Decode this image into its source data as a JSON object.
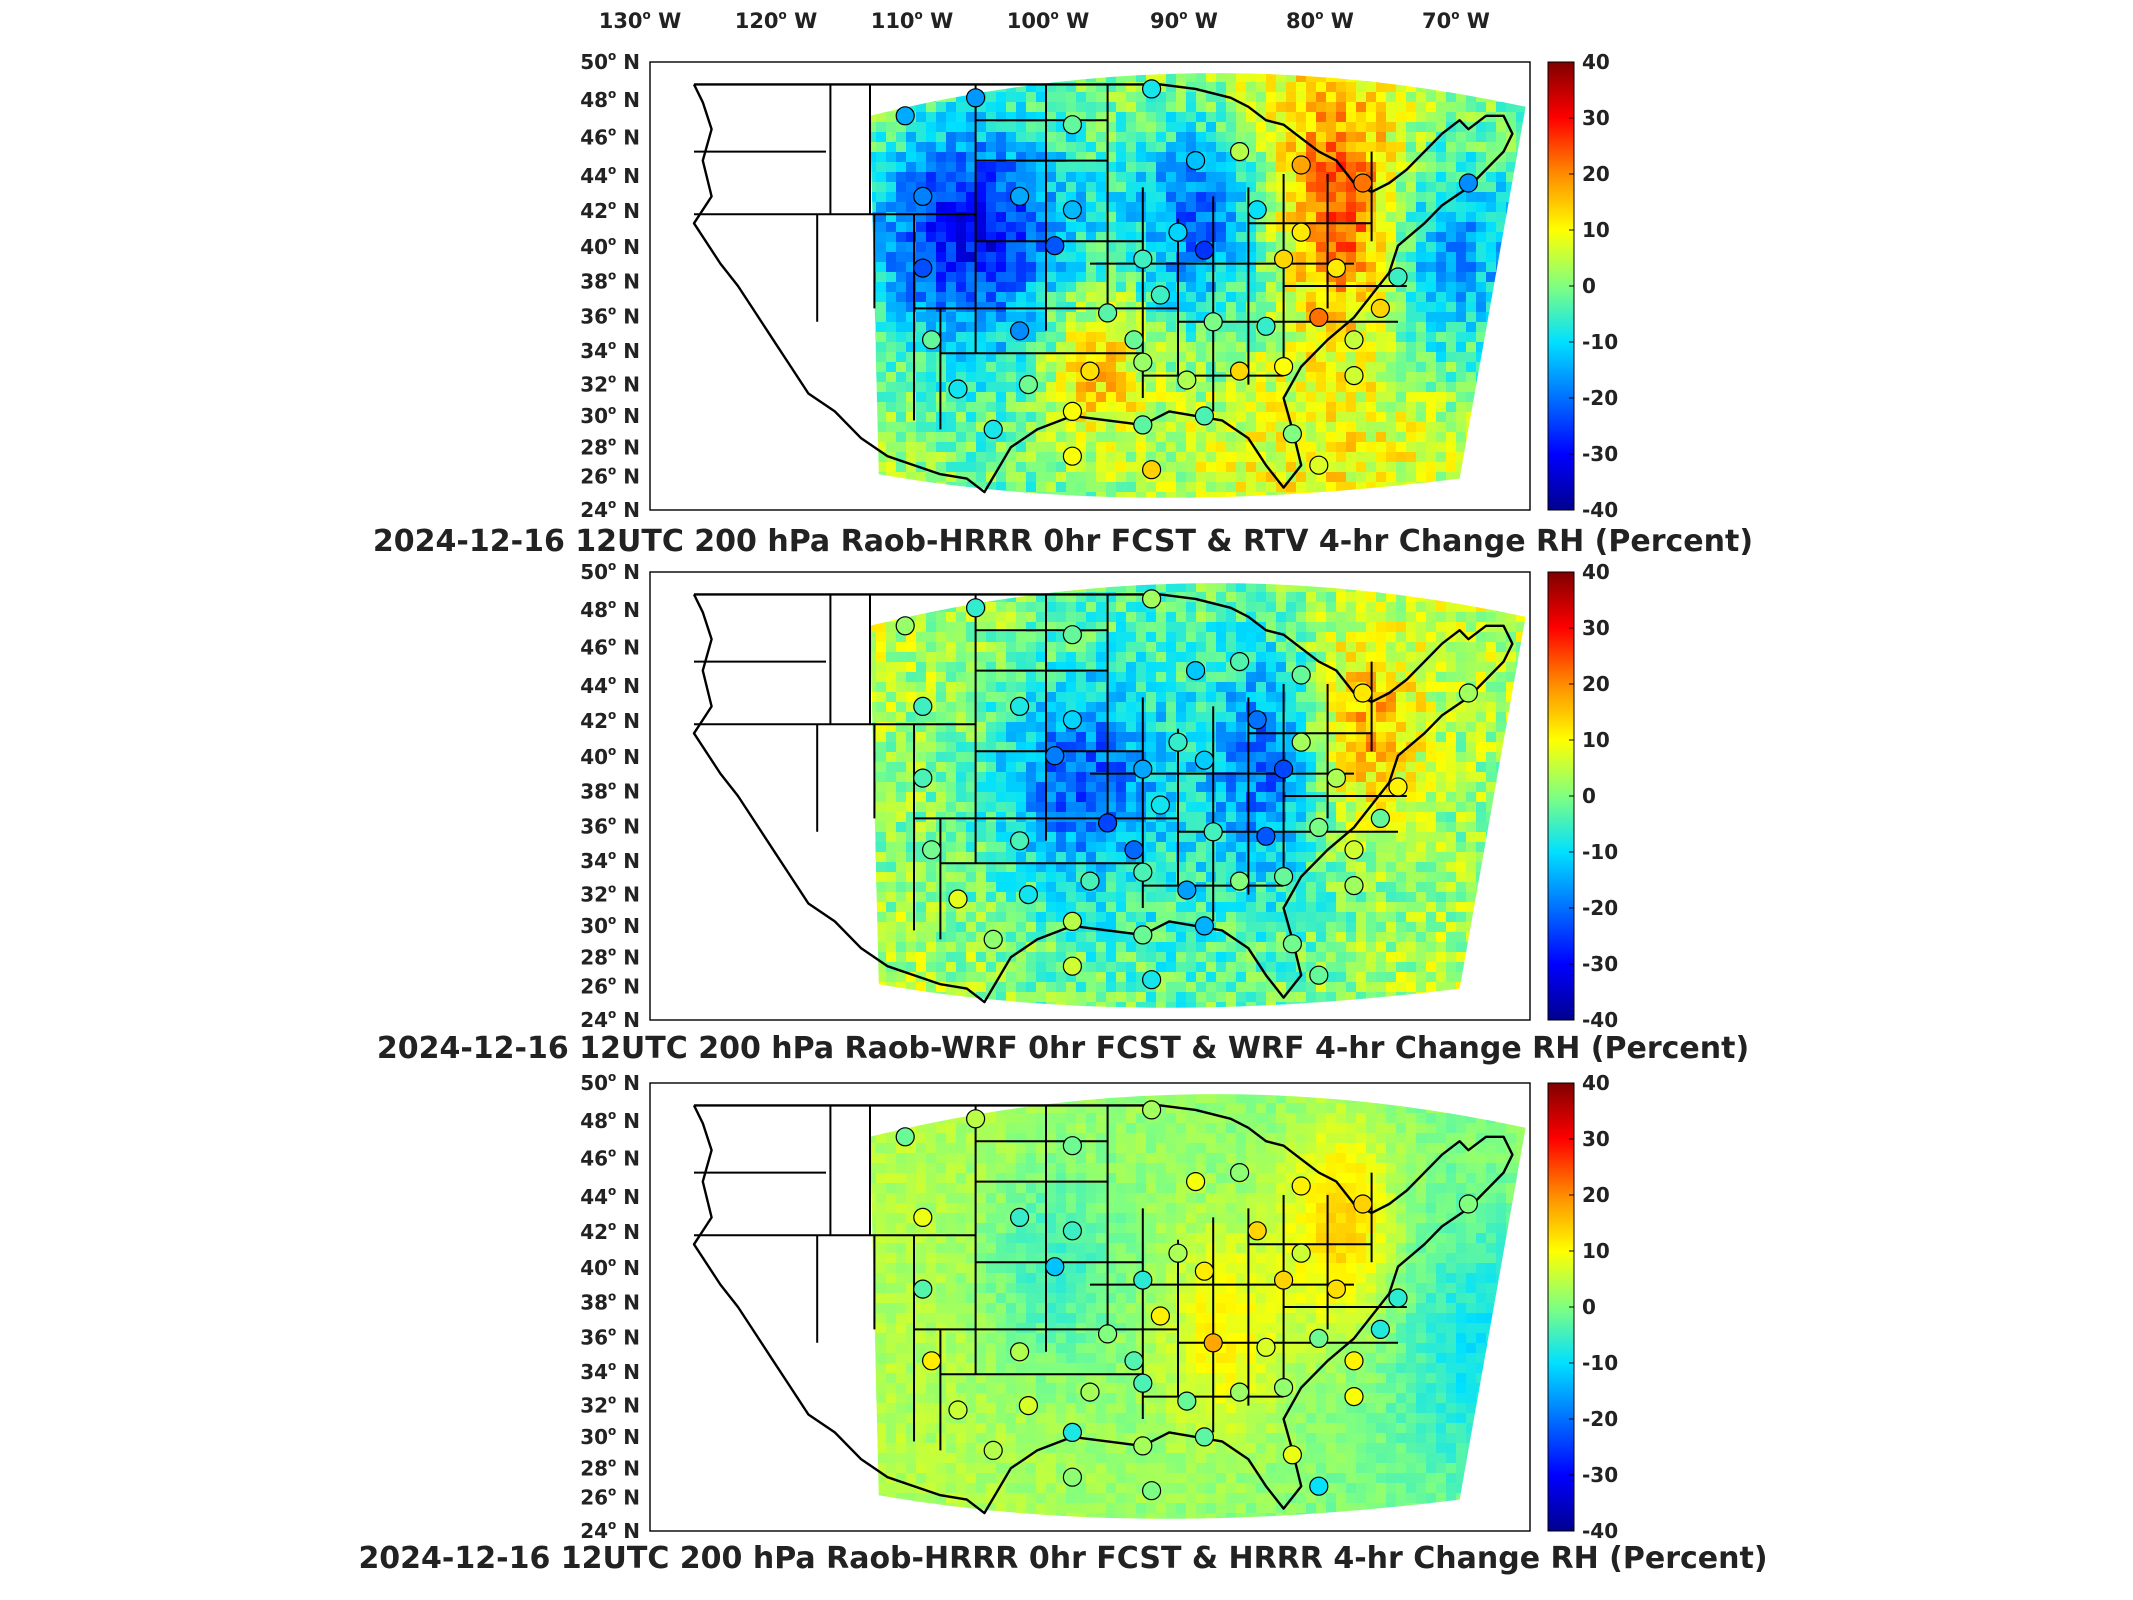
{
  "figure": {
    "longitude_labels": [
      "130",
      "120",
      "110",
      "100",
      "90",
      "80",
      "70"
    ],
    "longitude_suffix": "W",
    "latitude_labels": [
      "50",
      "48",
      "46",
      "44",
      "42",
      "40",
      "38",
      "36",
      "34",
      "32",
      "30",
      "28",
      "26",
      "24"
    ],
    "latitude_suffix": "N",
    "degree_mark": "o",
    "colorbar": {
      "ticks": [
        "40",
        "30",
        "20",
        "10",
        "0",
        "-10",
        "-20",
        "-30",
        "-40"
      ],
      "min": -40,
      "max": 40,
      "colormap": "jet",
      "colors": [
        "#00008f",
        "#0000ff",
        "#0080ff",
        "#00ffff",
        "#80ff80",
        "#ffff00",
        "#ff8000",
        "#ff0000",
        "#800000"
      ]
    },
    "panels": [
      {
        "id": "panel-1",
        "title": "2024-12-16 12UTC 200 hPa Raob-HRRR 0hr FCST & RTV 4-hr Change RH (Percent)"
      },
      {
        "id": "panel-2",
        "title": "2024-12-16 12UTC 200 hPa Raob-WRF 0hr FCST & WRF 4-hr Change RH (Percent)"
      },
      {
        "id": "panel-3",
        "title": "2024-12-16 12UTC 200 hPa Raob-HRRR 0hr FCST & HRRR 4-hr Change RH (Percent)"
      }
    ]
  }
}
